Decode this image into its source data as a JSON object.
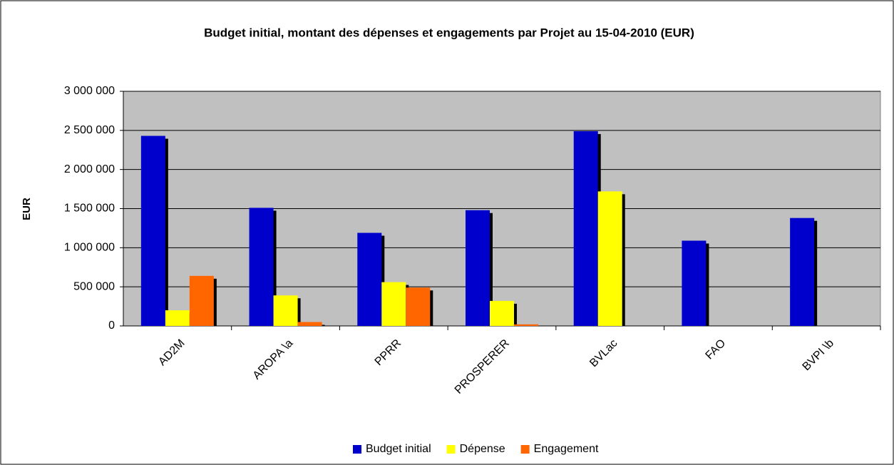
{
  "chart_data": {
    "type": "bar",
    "title": "Budget initial, montant des dépenses et engagements par Projet au 15-04-2010 (EUR)",
    "y_label": "EUR",
    "categories": [
      "AD2M",
      "AROPA \\a",
      "PPRR",
      "PROSPERER",
      "BVLac",
      "FAO",
      "BVPI \\b"
    ],
    "series": [
      {
        "name": "Budget initial",
        "color": "#0000cc",
        "values": [
          2430000,
          1510000,
          1190000,
          1480000,
          2490000,
          1090000,
          1380000
        ]
      },
      {
        "name": "Dépense",
        "color": "#ffff00",
        "values": [
          200000,
          390000,
          560000,
          320000,
          1720000,
          0,
          0
        ]
      },
      {
        "name": "Engagement",
        "color": "#ff6600",
        "values": [
          640000,
          50000,
          490000,
          20000,
          0,
          0,
          0
        ]
      }
    ],
    "ylim": [
      0,
      3000000
    ],
    "yticks": [
      0,
      {
        "value": 500000,
        "label": "500 000"
      },
      {
        "value": 1000000,
        "label": "1 000 000"
      },
      {
        "value": 1500000,
        "label": "1 500 000"
      },
      {
        "value": 2000000,
        "label": "2 000 000"
      },
      {
        "value": 2500000,
        "label": "2 500 000"
      },
      {
        "value": 3000000,
        "label": "3 000 000"
      }
    ],
    "grid": true,
    "legend": "bottom",
    "plot_background": "#c0c0c0"
  }
}
